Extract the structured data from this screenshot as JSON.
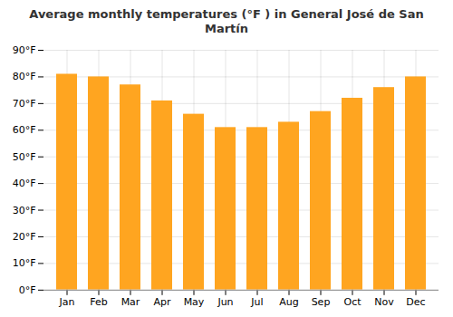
{
  "chart_data": {
    "type": "bar",
    "title": "Average monthly temperatures (°F ) in General José de San Martín",
    "categories": [
      "Jan",
      "Feb",
      "Mar",
      "Apr",
      "May",
      "Jun",
      "Jul",
      "Aug",
      "Sep",
      "Oct",
      "Nov",
      "Dec"
    ],
    "values": [
      81,
      80,
      77,
      71,
      66,
      61,
      61,
      63,
      67,
      72,
      76,
      80
    ],
    "color": "#FFA520",
    "ylim": [
      0,
      90
    ],
    "yticks": [
      {
        "value": 0,
        "label": "0°F"
      },
      {
        "value": 10,
        "label": "10°F"
      },
      {
        "value": 20,
        "label": "20°F"
      },
      {
        "value": 30,
        "label": "30°F"
      },
      {
        "value": 40,
        "label": "40°F"
      },
      {
        "value": 50,
        "label": "50°F"
      },
      {
        "value": 60,
        "label": "60°F"
      },
      {
        "value": 70,
        "label": "70°F"
      },
      {
        "value": 80,
        "label": "80°F"
      },
      {
        "value": 90,
        "label": "90°F"
      }
    ],
    "grid": true
  }
}
